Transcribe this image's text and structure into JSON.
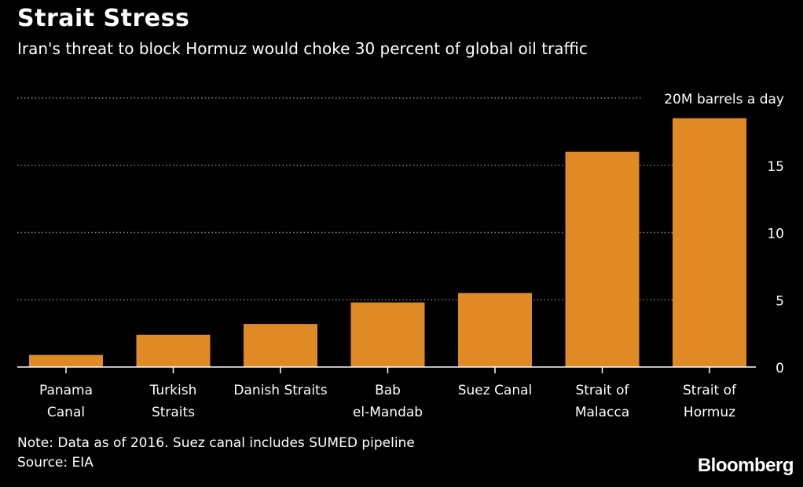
{
  "header": {
    "title": "Strait Stress",
    "subtitle": "Iran's threat to block Hormuz would choke 30 percent of global oil traffic"
  },
  "footer": {
    "note": "Note: Data as of 2016. Suez canal includes SUMED pipeline",
    "source": "Source: EIA",
    "logo": "Bloomberg"
  },
  "colors": {
    "bar": "#E08A26",
    "background": "#000000",
    "text": "#FFFFFF",
    "grid": "#7F7F7F"
  },
  "chart_data": {
    "type": "bar",
    "categories": [
      [
        "Panama",
        "Canal"
      ],
      [
        "Turkish",
        "Straits"
      ],
      [
        "Danish Straits"
      ],
      [
        "Bab",
        "el-Mandab"
      ],
      [
        "Suez Canal"
      ],
      [
        "Strait of",
        "Malacca"
      ],
      [
        "Strait of",
        "Hormuz"
      ]
    ],
    "values": [
      0.9,
      2.4,
      3.2,
      4.8,
      5.5,
      16.0,
      18.5
    ],
    "unit_label": "20M barrels a day",
    "ylim": [
      0,
      20
    ],
    "yticks": [
      {
        "value": 0,
        "label": "0"
      },
      {
        "value": 5,
        "label": "5"
      },
      {
        "value": 10,
        "label": "10"
      },
      {
        "value": 15,
        "label": "15"
      },
      {
        "value": 20,
        "label": "20M barrels a day"
      }
    ],
    "y_axis_position": "right",
    "grid": true
  }
}
